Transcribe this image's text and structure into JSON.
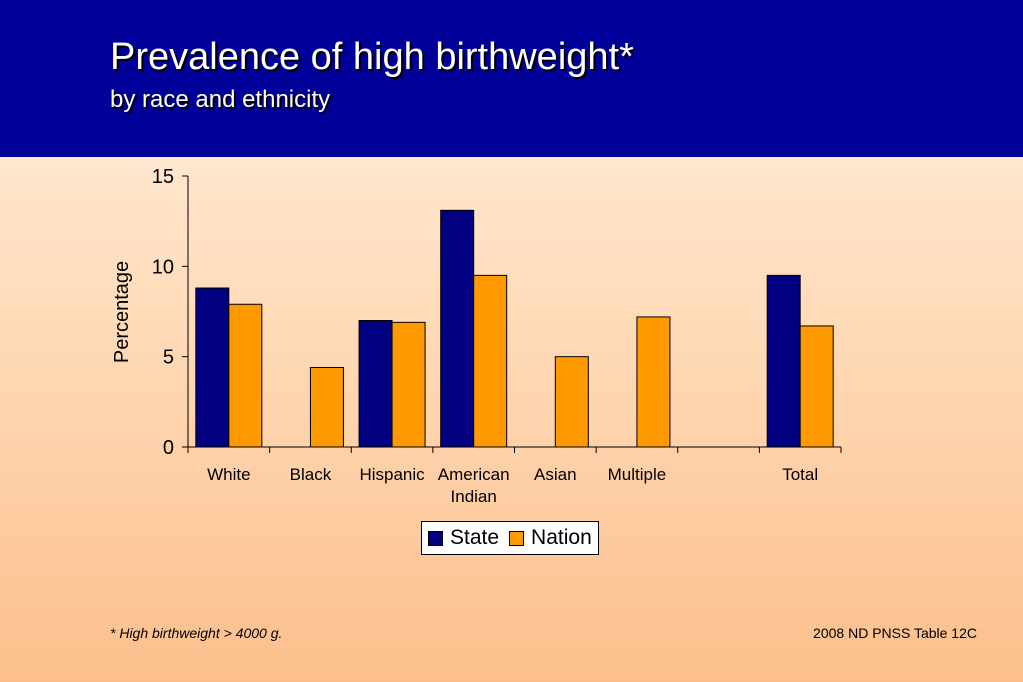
{
  "header": {
    "title": "Prevalence of high birthweight*",
    "subtitle": "by race and ethnicity"
  },
  "colors": {
    "header_bg": "#000099",
    "state": "#000080",
    "nation": "#ff9900"
  },
  "chart_data": {
    "type": "bar",
    "title": "Prevalence of high birthweight*",
    "subtitle": "by race and ethnicity",
    "xlabel": "",
    "ylabel": "Percentage",
    "ylim": [
      0,
      15
    ],
    "yticks": [
      0,
      5,
      10,
      15
    ],
    "grid": false,
    "legend_position": "bottom",
    "categories": [
      "White",
      "Black",
      "Hispanic",
      "American Indian",
      "Asian",
      "Multiple",
      "",
      "Total"
    ],
    "series": [
      {
        "name": "State",
        "color": "#000080",
        "values": [
          8.8,
          null,
          7.0,
          13.1,
          null,
          null,
          null,
          9.5
        ]
      },
      {
        "name": "Nation",
        "color": "#ff9900",
        "values": [
          7.9,
          4.4,
          6.9,
          9.5,
          5.0,
          7.2,
          null,
          6.7
        ]
      }
    ]
  },
  "footnote": "*  High birthweight > 4000 g.",
  "source": "2008 ND PNSS Table 12C"
}
